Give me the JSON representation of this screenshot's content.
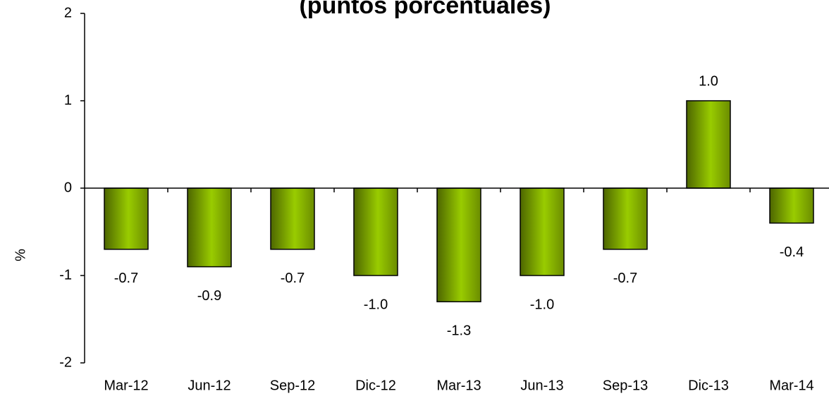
{
  "chart_data": {
    "type": "bar",
    "title": "(puntos porcentuales)",
    "y_label": "%",
    "categories": [
      "Mar-12",
      "Jun-12",
      "Sep-12",
      "Dic-12",
      "Mar-13",
      "Jun-13",
      "Sep-13",
      "Dic-13",
      "Mar-14"
    ],
    "values": [
      -0.7,
      -0.9,
      -0.7,
      -1.0,
      -1.3,
      -1.0,
      -0.7,
      1.0,
      -0.4
    ],
    "value_labels": [
      "-0.7",
      "-0.9",
      "-0.7",
      "-1.0",
      "-1.3",
      "-1.0",
      "-0.7",
      "1.0",
      "-0.4"
    ],
    "color": "#99cc00",
    "ylim": [
      -2,
      2
    ],
    "yticks": [
      -2,
      -1,
      0,
      1,
      2
    ],
    "grid": false
  }
}
